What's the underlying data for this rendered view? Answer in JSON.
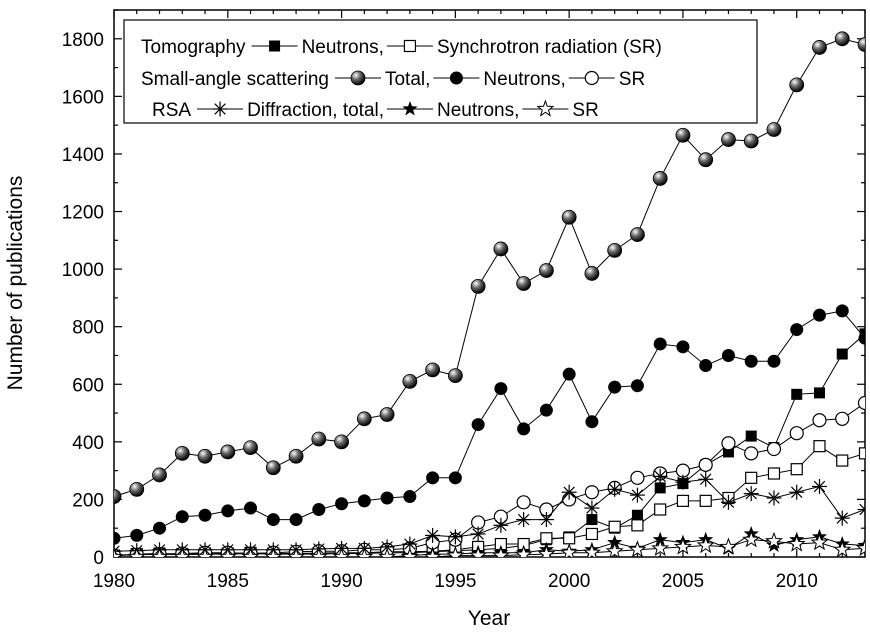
{
  "chart_data": {
    "type": "line",
    "xlabel": "Year",
    "ylabel": "Number of publications",
    "xlim": [
      1980,
      2013
    ],
    "ylim": [
      0,
      1900
    ],
    "x_ticks": [
      "1980",
      "1985",
      "1990",
      "1995",
      "2000",
      "2005",
      "2010"
    ],
    "y_ticks": [
      "0",
      "200",
      "400",
      "600",
      "800",
      "1000",
      "1200",
      "1400",
      "1600",
      "1800"
    ],
    "legend": {
      "placement": "top-left",
      "rows": [
        {
          "group": "Tomography",
          "entries": [
            {
              "series": 0,
              "label": "Neutrons,"
            },
            {
              "series": 1,
              "label": "Synchrotron radiation (SR)"
            }
          ]
        },
        {
          "group": "Small-angle scattering",
          "entries": [
            {
              "series": 2,
              "label": "Total,"
            },
            {
              "series": 3,
              "label": "Neutrons,"
            },
            {
              "series": 4,
              "label": "SR"
            }
          ]
        },
        {
          "group": "RSA",
          "entries": [
            {
              "series": 5,
              "label": "Diffraction, total,"
            },
            {
              "series": 6,
              "label": "Neutrons,"
            },
            {
              "series": 7,
              "label": "SR"
            }
          ]
        }
      ]
    },
    "x": [
      1980,
      1981,
      1982,
      1983,
      1984,
      1985,
      1986,
      1987,
      1988,
      1989,
      1990,
      1991,
      1992,
      1993,
      1994,
      1995,
      1996,
      1997,
      1998,
      1999,
      2000,
      2001,
      2002,
      2003,
      2004,
      2005,
      2006,
      2007,
      2008,
      2009,
      2010,
      2011,
      2012,
      2013
    ],
    "series": [
      {
        "marker": "square-filled",
        "values": [
          5,
          8,
          10,
          8,
          10,
          10,
          12,
          10,
          10,
          10,
          12,
          12,
          15,
          15,
          18,
          22,
          25,
          30,
          40,
          60,
          70,
          130,
          100,
          145,
          240,
          255,
          320,
          365,
          420,
          380,
          565,
          570,
          705,
          775
        ]
      },
      {
        "marker": "square-open",
        "values": [
          5,
          10,
          12,
          10,
          12,
          12,
          14,
          12,
          12,
          14,
          15,
          15,
          18,
          18,
          20,
          25,
          35,
          45,
          45,
          65,
          65,
          80,
          105,
          110,
          165,
          195,
          195,
          205,
          275,
          290,
          305,
          385,
          335,
          360
        ]
      },
      {
        "marker": "ball",
        "values": [
          210,
          235,
          285,
          360,
          350,
          365,
          380,
          310,
          350,
          410,
          400,
          480,
          495,
          610,
          650,
          630,
          940,
          1070,
          950,
          995,
          1180,
          985,
          1065,
          1120,
          1315,
          1465,
          1380,
          1450,
          1445,
          1485,
          1640,
          1770,
          1800,
          1780
        ]
      },
      {
        "marker": "circle-filled",
        "values": [
          65,
          75,
          100,
          140,
          145,
          160,
          170,
          130,
          130,
          165,
          185,
          195,
          205,
          210,
          275,
          275,
          460,
          585,
          445,
          510,
          635,
          470,
          590,
          595,
          740,
          730,
          665,
          700,
          680,
          680,
          790,
          840,
          855,
          760
        ]
      },
      {
        "marker": "circle-open",
        "values": [
          5,
          8,
          10,
          12,
          15,
          15,
          12,
          15,
          18,
          20,
          20,
          25,
          25,
          30,
          50,
          60,
          120,
          140,
          190,
          165,
          200,
          225,
          240,
          275,
          290,
          300,
          320,
          395,
          360,
          375,
          430,
          475,
          480,
          535
        ]
      },
      {
        "marker": "asterisk",
        "values": [
          20,
          22,
          25,
          25,
          25,
          25,
          25,
          25,
          25,
          28,
          30,
          30,
          35,
          45,
          75,
          70,
          80,
          110,
          130,
          130,
          225,
          170,
          235,
          215,
          280,
          260,
          270,
          190,
          220,
          205,
          225,
          245,
          135,
          165
        ]
      },
      {
        "marker": "star-filled",
        "values": [
          0,
          0,
          0,
          0,
          0,
          0,
          0,
          0,
          0,
          0,
          0,
          0,
          0,
          5,
          10,
          10,
          15,
          15,
          15,
          25,
          20,
          25,
          50,
          30,
          60,
          50,
          60,
          30,
          80,
          40,
          60,
          70,
          45,
          40
        ]
      },
      {
        "marker": "star-open",
        "values": [
          0,
          0,
          0,
          0,
          0,
          0,
          0,
          0,
          0,
          0,
          0,
          0,
          0,
          0,
          0,
          5,
          5,
          5,
          8,
          10,
          15,
          15,
          20,
          25,
          30,
          35,
          40,
          35,
          60,
          55,
          45,
          50,
          25,
          30
        ]
      }
    ]
  }
}
